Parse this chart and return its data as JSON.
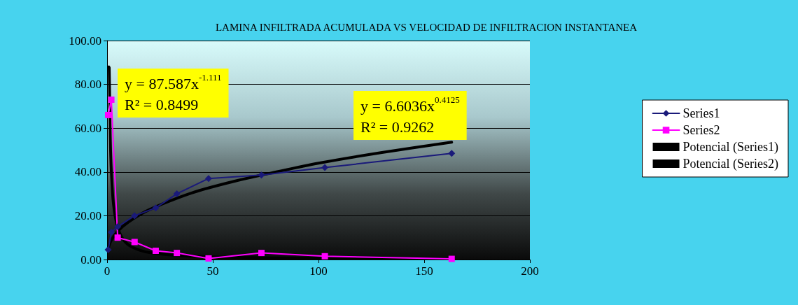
{
  "chart_data": {
    "type": "line",
    "title": "LAMINA INFILTRADA ACUMULADA VS VELOCIDAD DE INFILTRACION INSTANTANEA",
    "series": [
      {
        "name": "Series1",
        "color": "#1a1a7a",
        "marker": "diamond",
        "x": [
          0.5,
          2,
          5,
          13,
          23,
          33,
          48,
          73,
          103,
          163
        ],
        "values": [
          4.5,
          12.5,
          15,
          20,
          23.6,
          30,
          37,
          38.6,
          42,
          48.5
        ]
      },
      {
        "name": "Series2",
        "color": "#ff00ff",
        "marker": "square",
        "x": [
          0.5,
          2,
          5,
          13,
          23,
          33,
          48,
          73,
          103,
          163
        ],
        "values": [
          66,
          73,
          10,
          8,
          4,
          3,
          0.5,
          3,
          1.5,
          0.3
        ]
      },
      {
        "name": "Potencial (Series1)",
        "color": "#000000",
        "marker": "none",
        "x": [
          0.5,
          1,
          2,
          5,
          10,
          20,
          40,
          60,
          80,
          100,
          130,
          163
        ],
        "values": [
          5,
          6.6,
          8.8,
          12.9,
          17.1,
          22.8,
          30.4,
          35.7,
          40,
          44,
          48.9,
          53.6
        ]
      },
      {
        "name": "Potencial (Series2)",
        "color": "#000000",
        "marker": "none",
        "x": [
          0.8,
          1,
          1.5,
          2,
          3,
          5,
          8,
          12,
          20,
          40,
          80,
          163
        ],
        "values": [
          88,
          87.6,
          56.1,
          40.4,
          25.5,
          14.6,
          8.7,
          5.6,
          3.2,
          1.5,
          0.7,
          0.3
        ]
      }
    ],
    "annotations": [
      "y = 87.587x$^{-1.111}$",
      "R² = 0.8499",
      "y = 6.6036x$^{0.4125}$",
      "R² = 0.9262"
    ],
    "xlim": [
      0,
      200
    ],
    "xticks": [
      0,
      50,
      100,
      150,
      200
    ],
    "ylim": [
      0,
      100
    ],
    "yticks": [
      {
        "value": 0,
        "label": "0.00"
      },
      {
        "value": 20,
        "label": "20.00"
      },
      {
        "value": 40,
        "label": "40.00"
      },
      {
        "value": 60,
        "label": "60.00"
      },
      {
        "value": 80,
        "label": "80.00"
      },
      {
        "value": 100,
        "label": "100.00"
      }
    ],
    "grid": "y",
    "legend": "right",
    "line_style": "solid"
  }
}
